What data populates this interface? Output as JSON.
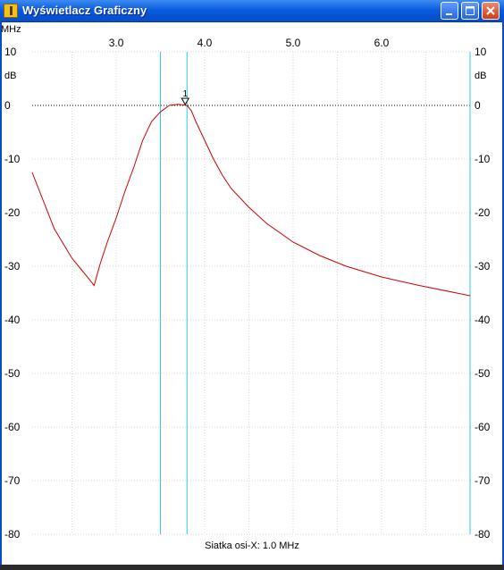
{
  "window": {
    "title": "Wyświetlacz Graficzny",
    "icon": "oscilloscope-app-icon",
    "controls": [
      "minimize-icon",
      "maximize-icon",
      "close-icon"
    ]
  },
  "chart_data": {
    "type": "line",
    "x_unit_label": "MHz",
    "x_tick_labels": [
      "3.0",
      "4.0",
      "5.0",
      "6.0"
    ],
    "xlim": [
      2.05,
      7.0
    ],
    "y_unit_label": "dB",
    "ylim": [
      -80,
      10
    ],
    "y_ticks": [
      10,
      0,
      -10,
      -20,
      -30,
      -40,
      -50,
      -60,
      -70,
      -80
    ],
    "grid": true,
    "reference_line_y": 0,
    "marker": {
      "label": "1",
      "x": 3.78,
      "y": 0
    },
    "cursor_lines_x": [
      3.5,
      3.8,
      7.0
    ],
    "series": [
      {
        "color": "#cc0000",
        "x": [
          2.05,
          2.3,
          2.5,
          2.6,
          2.7,
          2.75,
          2.82,
          2.9,
          3.0,
          3.1,
          3.2,
          3.3,
          3.4,
          3.5,
          3.6,
          3.7,
          3.75,
          3.8,
          3.85,
          3.9,
          4.0,
          4.1,
          4.2,
          4.3,
          4.5,
          4.7,
          5.0,
          5.3,
          5.6,
          6.0,
          6.4,
          7.0
        ],
        "values": [
          -12.5,
          -23,
          -28.5,
          -30.5,
          -32.5,
          -33.6,
          -29.5,
          -25.5,
          -21,
          -16,
          -11.5,
          -6.5,
          -3,
          -1.2,
          0,
          0.2,
          0.1,
          0,
          -1,
          -3,
          -6.5,
          -10,
          -13,
          -15.5,
          -19,
          -22,
          -25.5,
          -28,
          -30,
          -32,
          -33.5,
          -35.5
        ]
      }
    ]
  },
  "status": {
    "text": "Siatka osi-X: 1.0 MHz"
  }
}
